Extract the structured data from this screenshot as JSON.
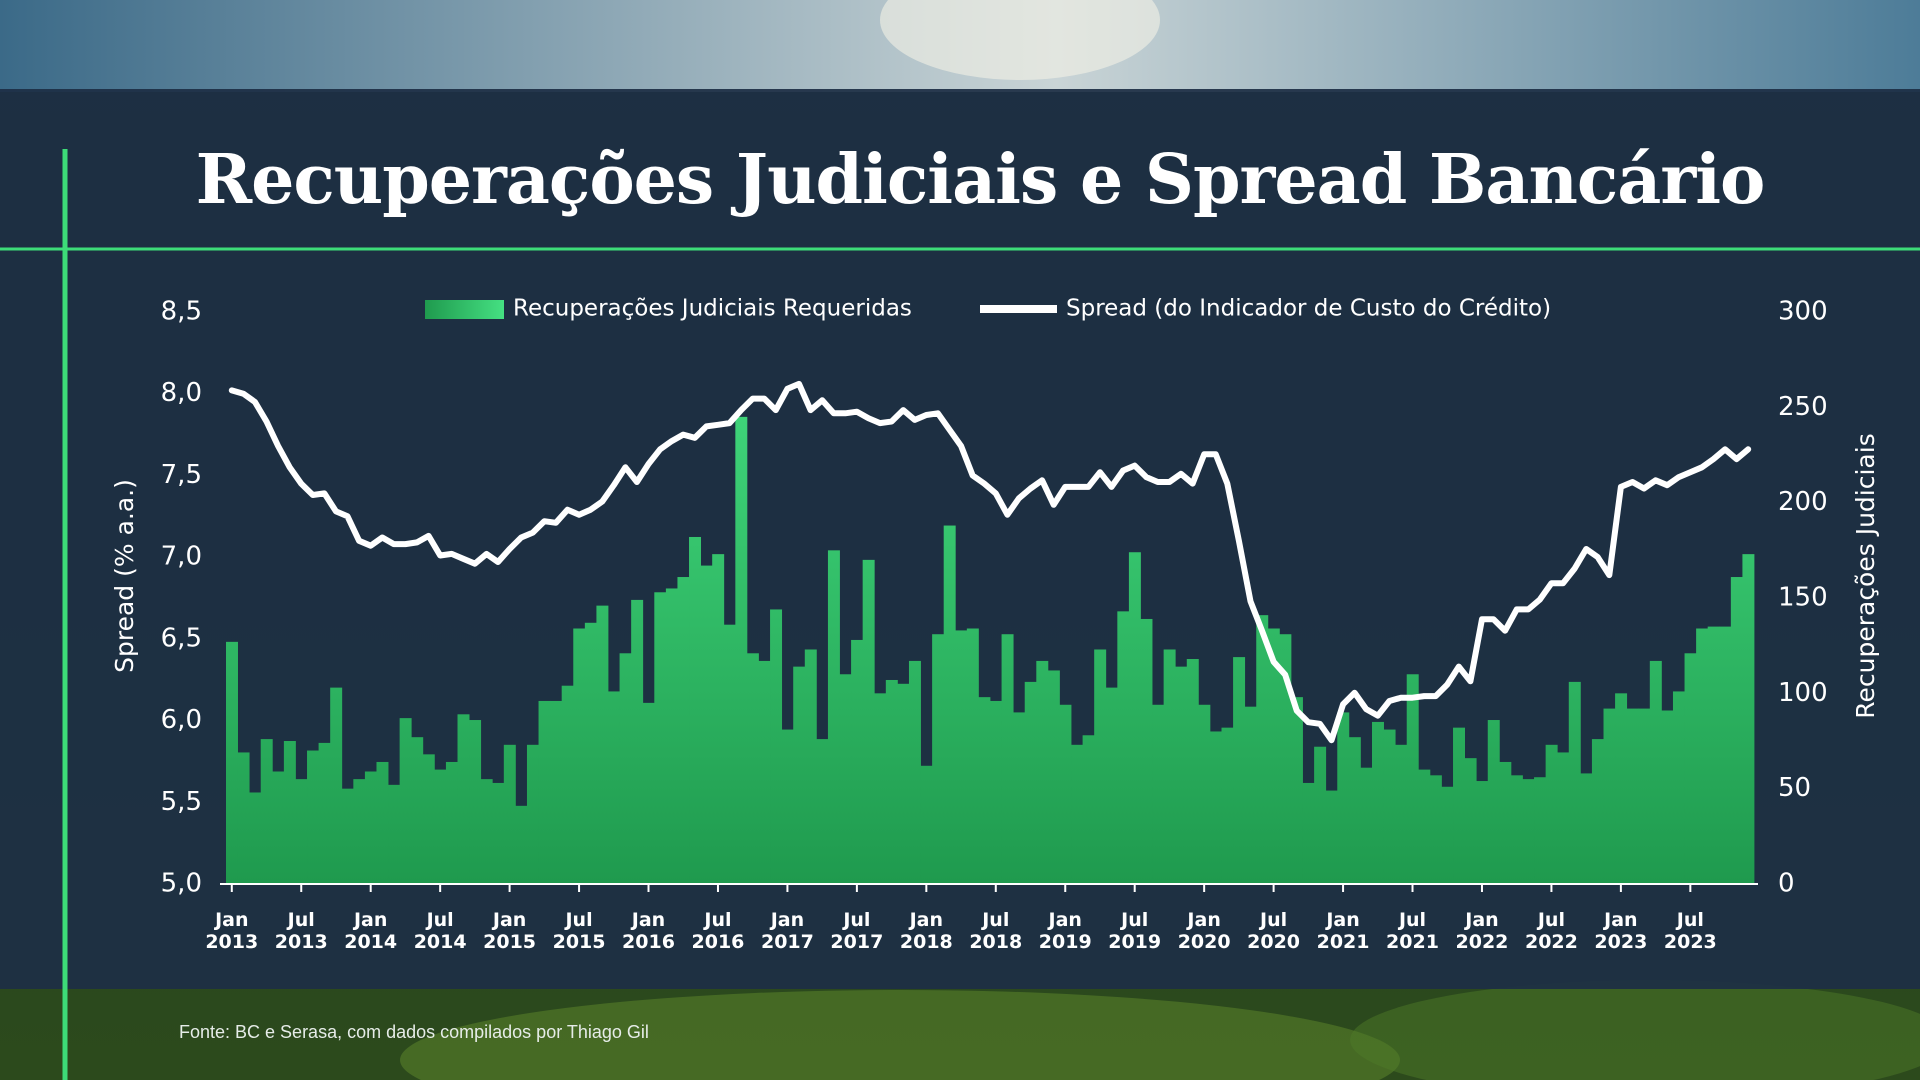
{
  "chart_data": {
    "type": "combo",
    "title": "Recuperações Judiciais e Spread Bancário",
    "source": "Fonte: BC e Serasa, com dados compilados por Thiago Gil",
    "y_label": "Spread (% a.a.)",
    "y2_label": "Recuperações Judiciais",
    "categories": [
      "Jan 2013",
      null,
      null,
      null,
      null,
      null,
      "Jul 2013",
      null,
      null,
      null,
      null,
      null,
      "Jan 2014",
      null,
      null,
      null,
      null,
      null,
      "Jul 2014",
      null,
      null,
      null,
      null,
      null,
      "Jan 2015",
      null,
      null,
      null,
      null,
      null,
      "Jul 2015",
      null,
      null,
      null,
      null,
      null,
      "Jan 2016",
      null,
      null,
      null,
      null,
      null,
      "Jul 2016",
      null,
      null,
      null,
      null,
      null,
      "Jan 2017",
      null,
      null,
      null,
      null,
      null,
      "Jul 2017",
      null,
      null,
      null,
      null,
      null,
      "Jan 2018",
      null,
      null,
      null,
      null,
      null,
      "Jul 2018",
      null,
      null,
      null,
      null,
      null,
      "Jan 2019",
      null,
      null,
      null,
      null,
      null,
      "Jul 2019",
      null,
      null,
      null,
      null,
      null,
      "Jan 2020",
      null,
      null,
      null,
      null,
      null,
      "Jul 2020",
      null,
      null,
      null,
      null,
      null,
      "Jan 2021",
      null,
      null,
      null,
      null,
      null,
      "Jul 2021",
      null,
      null,
      null,
      null,
      null,
      "Jan 2022",
      null,
      null,
      null,
      null,
      null,
      "Jul 2022",
      null,
      null,
      null,
      null,
      null,
      "Jan 2023",
      null,
      null,
      null,
      null,
      null,
      "Jul 2023",
      null,
      null,
      null,
      null,
      null
    ],
    "series": [
      {
        "name": "Recuperações Judiciais Requeridas",
        "type": "bar",
        "axis": "y2",
        "color": "#45e082",
        "values": [
          127,
          69,
          48,
          76,
          59,
          75,
          55,
          70,
          74,
          103,
          50,
          55,
          59,
          64,
          52,
          87,
          77,
          68,
          60,
          64,
          89,
          86,
          55,
          53,
          73,
          41,
          73,
          96,
          96,
          104,
          134,
          137,
          146,
          101,
          121,
          149,
          95,
          153,
          155,
          161,
          182,
          167,
          173,
          136,
          245,
          121,
          117,
          144,
          81,
          114,
          123,
          76,
          175,
          110,
          128,
          170,
          100,
          107,
          105,
          117,
          62,
          131,
          188,
          133,
          134,
          98,
          96,
          131,
          90,
          106,
          117,
          112,
          94,
          73,
          78,
          123,
          103,
          143,
          174,
          139,
          94,
          123,
          114,
          118,
          94,
          80,
          82,
          119,
          93,
          141,
          134,
          131,
          98,
          53,
          72,
          49,
          90,
          77,
          61,
          85,
          81,
          73,
          110,
          60,
          57,
          51,
          82,
          66,
          54,
          86,
          64,
          57,
          55,
          56,
          73,
          69,
          106,
          58,
          76,
          92,
          100,
          92,
          92,
          117,
          91,
          101,
          121,
          134,
          135,
          135,
          161,
          173
        ]
      },
      {
        "name": "Spread (do Indicador de Custo do Crédito)",
        "type": "line",
        "axis": "y",
        "color": "#ffffff",
        "values": [
          8.02,
          8.0,
          7.95,
          7.83,
          7.68,
          7.55,
          7.45,
          7.38,
          7.39,
          7.28,
          7.25,
          7.1,
          7.07,
          7.12,
          7.08,
          7.08,
          7.09,
          7.13,
          7.01,
          7.02,
          6.99,
          6.96,
          7.02,
          6.97,
          7.05,
          7.12,
          7.15,
          7.22,
          7.21,
          7.29,
          7.26,
          7.29,
          7.34,
          7.44,
          7.55,
          7.46,
          7.57,
          7.66,
          7.71,
          7.75,
          7.73,
          7.8,
          7.81,
          7.82,
          7.9,
          7.97,
          7.97,
          7.9,
          8.03,
          8.06,
          7.9,
          7.96,
          7.88,
          7.88,
          7.89,
          7.85,
          7.82,
          7.83,
          7.9,
          7.84,
          7.87,
          7.88,
          7.78,
          7.68,
          7.5,
          7.45,
          7.39,
          7.26,
          7.36,
          7.42,
          7.47,
          7.32,
          7.43,
          7.43,
          7.43,
          7.52,
          7.43,
          7.53,
          7.56,
          7.49,
          7.46,
          7.46,
          7.51,
          7.45,
          7.63,
          7.63,
          7.45,
          7.1,
          6.73,
          6.55,
          6.36,
          6.28,
          6.06,
          5.99,
          5.98,
          5.88,
          6.1,
          6.17,
          6.07,
          6.03,
          6.12,
          6.14,
          6.14,
          6.15,
          6.15,
          6.22,
          6.33,
          6.24,
          6.62,
          6.62,
          6.55,
          6.68,
          6.68,
          6.74,
          6.84,
          6.84,
          6.93,
          7.05,
          7.0,
          6.89,
          7.43,
          7.46,
          7.42,
          7.47,
          7.44,
          7.49,
          7.52,
          7.55,
          7.6,
          7.66,
          7.6,
          7.66
        ]
      }
    ],
    "ylim": [
      5.0,
      8.5
    ],
    "yticks": [
      {
        "value": 5.0,
        "label": "5,0"
      },
      {
        "value": 5.5,
        "label": "5,5"
      },
      {
        "value": 6.0,
        "label": "6,0"
      },
      {
        "value": 6.5,
        "label": "6,5"
      },
      {
        "value": 7.0,
        "label": "7,0"
      },
      {
        "value": 7.5,
        "label": "7,5"
      },
      {
        "value": 8.0,
        "label": "8,0"
      },
      {
        "value": 8.5,
        "label": "8,5"
      }
    ],
    "y2lim": [
      0,
      300
    ],
    "y2ticks": [
      0,
      50,
      100,
      150,
      200,
      250,
      300
    ],
    "grid": false
  }
}
